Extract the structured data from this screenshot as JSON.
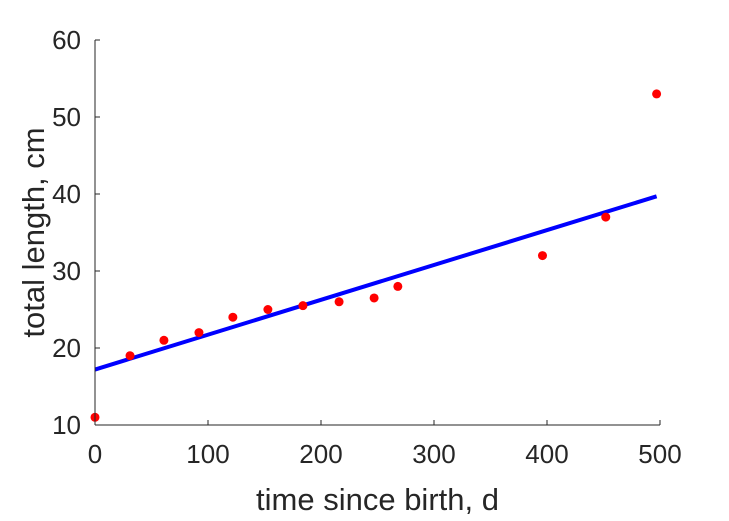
{
  "chart_data": {
    "type": "scatter",
    "title": "",
    "xlabel": "time since birth, d",
    "ylabel": "total length, cm",
    "xlim": [
      0,
      500
    ],
    "ylim": [
      10,
      60
    ],
    "xticks": [
      0,
      100,
      200,
      300,
      400,
      500
    ],
    "yticks": [
      10,
      20,
      30,
      40,
      50,
      60
    ],
    "grid": false,
    "series": [
      {
        "kind": "points",
        "color": "#ff0000",
        "x": [
          0,
          31,
          61,
          92,
          122,
          153,
          184,
          216,
          247,
          268,
          396,
          452,
          497
        ],
        "y": [
          11,
          19,
          21,
          22,
          24,
          25,
          25.5,
          26,
          26.5,
          28,
          32,
          37,
          53
        ]
      },
      {
        "kind": "fit-line",
        "color": "#0000ff",
        "x": [
          0,
          497
        ],
        "y": [
          17.2,
          39.7
        ]
      }
    ]
  }
}
